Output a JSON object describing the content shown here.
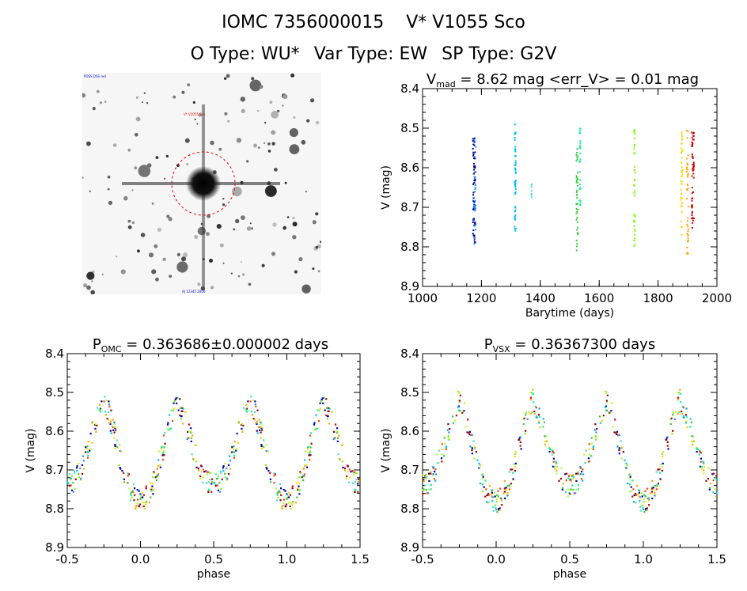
{
  "header": {
    "object_id": "IOMC 7356000015",
    "star_name": "V* V1055 Sco",
    "o_type": "O Type: WU*",
    "var_type": "Var Type: EW",
    "sp_type": "SP Type: G2V"
  },
  "finder": {
    "label_top_left": "POSS DSS red",
    "label_center": "V* V1055 Sco",
    "label_bottom": "AJ 12345 2006"
  },
  "colors": {
    "phase_palette": [
      "#00008b",
      "#0000cd",
      "#1e90ff",
      "#00bfff",
      "#40e0d0",
      "#00fa9a",
      "#32cd32",
      "#7cfc00",
      "#adff2f",
      "#ffd700",
      "#ffa500",
      "#ff4500",
      "#cc0000",
      "#8b0000"
    ]
  },
  "chart_data": [
    {
      "type": "scatter",
      "title_main": "V",
      "title_sub": "mad",
      "title_rest": " = 8.62 mag <err_V> = 0.01 mag",
      "xlabel": "Barytime (days)",
      "ylabel": "V (mag)",
      "xlim": [
        1000,
        2000
      ],
      "ylim": [
        8.9,
        8.4
      ],
      "xticks": [
        1000,
        1200,
        1400,
        1600,
        1800,
        2000
      ],
      "yticks": [
        8.4,
        8.5,
        8.6,
        8.7,
        8.8,
        8.9
      ],
      "clusters": [
        {
          "x": 1175,
          "xspread": 8,
          "ymin": 8.52,
          "ymax": 8.8,
          "color": "#00008b",
          "n": 60
        },
        {
          "x": 1178,
          "xspread": 6,
          "ymin": 8.52,
          "ymax": 8.8,
          "color": "#1e90ff",
          "n": 30
        },
        {
          "x": 1315,
          "xspread": 4,
          "ymin": 8.49,
          "ymax": 8.77,
          "color": "#00bfff",
          "n": 55
        },
        {
          "x": 1370,
          "xspread": 2,
          "ymin": 8.64,
          "ymax": 8.68,
          "color": "#40e0d0",
          "n": 8
        },
        {
          "x": 1525,
          "xspread": 5,
          "ymin": 8.55,
          "ymax": 8.82,
          "color": "#32cd32",
          "n": 40
        },
        {
          "x": 1535,
          "xspread": 3,
          "ymin": 8.5,
          "ymax": 8.7,
          "color": "#00fa9a",
          "n": 25
        },
        {
          "x": 1720,
          "xspread": 3,
          "ymin": 8.5,
          "ymax": 8.8,
          "color": "#7cfc00",
          "n": 40
        },
        {
          "x": 1880,
          "xspread": 6,
          "ymin": 8.51,
          "ymax": 8.78,
          "color": "#ffd700",
          "n": 40
        },
        {
          "x": 1900,
          "xspread": 6,
          "ymin": 8.5,
          "ymax": 8.85,
          "color": "#ffa500",
          "n": 40
        },
        {
          "x": 1918,
          "xspread": 8,
          "ymin": 8.51,
          "ymax": 8.76,
          "color": "#cc0000",
          "n": 55
        }
      ]
    },
    {
      "type": "scatter",
      "title_main": "P",
      "title_sub": "OMC",
      "title_rest": " = 0.363686±0.000002 days",
      "xlabel": "phase",
      "ylabel": "V (mag)",
      "xlim": [
        -0.5,
        1.5
      ],
      "ylim": [
        8.9,
        8.4
      ],
      "xticks": [
        -0.5,
        0.0,
        0.5,
        1.0,
        1.5
      ],
      "yticks": [
        8.4,
        8.5,
        8.6,
        8.7,
        8.8,
        8.9
      ],
      "curve": {
        "max_mag": 8.52,
        "primary_min": 8.78,
        "secondary_min": 8.74,
        "min_phase": 0.0,
        "scatter": 0.03,
        "n_per_cycle": 260
      }
    },
    {
      "type": "scatter",
      "title_main": "P",
      "title_sub": "VSX",
      "title_rest": " = 0.36367300 days",
      "xlabel": "phase",
      "ylabel": "V (mag)",
      "xlim": [
        -0.5,
        1.5
      ],
      "ylim": [
        8.9,
        8.4
      ],
      "xticks": [
        -0.5,
        0.0,
        0.5,
        1.0,
        1.5
      ],
      "yticks": [
        8.4,
        8.5,
        8.6,
        8.7,
        8.8,
        8.9
      ],
      "curve": {
        "max_mag": 8.52,
        "primary_min": 8.78,
        "secondary_min": 8.74,
        "min_phase": 0.0,
        "scatter": 0.03,
        "n_per_cycle": 260
      }
    }
  ]
}
